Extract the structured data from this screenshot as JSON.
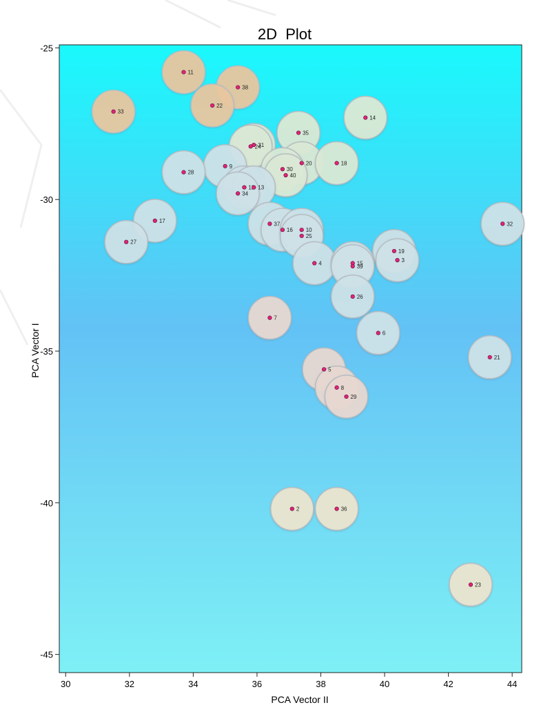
{
  "chart_data": {
    "type": "scatter",
    "title": "2D  Plot",
    "xlabel": "PCA Vector II",
    "ylabel": "PCA Vector I",
    "xlim": [
      29.8,
      44.3
    ],
    "ylim": [
      -45.6,
      -24.9
    ],
    "x_ticks": [
      30,
      32,
      34,
      36,
      38,
      40,
      42,
      44
    ],
    "y_ticks": [
      -25,
      -30,
      -35,
      -40,
      -45
    ],
    "grid": false,
    "legend": "none",
    "points": [
      {
        "label": "11",
        "x": 33.7,
        "y": -25.8,
        "color": "#e9c7a0"
      },
      {
        "label": "38",
        "x": 35.4,
        "y": -26.3,
        "color": "#e9c7a0"
      },
      {
        "label": "22",
        "x": 34.6,
        "y": -26.9,
        "color": "#e9c7a0"
      },
      {
        "label": "33",
        "x": 31.5,
        "y": -27.1,
        "color": "#e9c7a0"
      },
      {
        "label": "14",
        "x": 39.4,
        "y": -27.3,
        "color": "#dcebd6"
      },
      {
        "label": "35",
        "x": 37.3,
        "y": -27.8,
        "color": "#dcebd6"
      },
      {
        "label": "31",
        "x": 35.9,
        "y": -28.2,
        "color": "#dcebd6"
      },
      {
        "label": "24",
        "x": 35.8,
        "y": -28.25,
        "color": "#dcebd6"
      },
      {
        "label": "20",
        "x": 37.4,
        "y": -28.8,
        "color": "#dcebd6"
      },
      {
        "label": "18",
        "x": 38.5,
        "y": -28.8,
        "color": "#dcebd6"
      },
      {
        "label": "9",
        "x": 35.0,
        "y": -28.9,
        "color": "#cfe3ea"
      },
      {
        "label": "30",
        "x": 36.8,
        "y": -29.0,
        "color": "#dcebd6"
      },
      {
        "label": "40",
        "x": 36.9,
        "y": -29.2,
        "color": "#dcebd6"
      },
      {
        "label": "28",
        "x": 33.7,
        "y": -29.1,
        "color": "#cfe3ea"
      },
      {
        "label": "12",
        "x": 35.6,
        "y": -29.6,
        "color": "#cfe3ea"
      },
      {
        "label": "13",
        "x": 35.9,
        "y": -29.6,
        "color": "#cfe3ea"
      },
      {
        "label": "34",
        "x": 35.4,
        "y": -29.8,
        "color": "#cfe3ea"
      },
      {
        "label": "17",
        "x": 32.8,
        "y": -30.7,
        "color": "#cfe3ea"
      },
      {
        "label": "37",
        "x": 36.4,
        "y": -30.8,
        "color": "#cfe3ea"
      },
      {
        "label": "32",
        "x": 43.7,
        "y": -30.8,
        "color": "#cfe3ea"
      },
      {
        "label": "16",
        "x": 36.8,
        "y": -31.0,
        "color": "#cfe3ea"
      },
      {
        "label": "10",
        "x": 37.4,
        "y": -31.0,
        "color": "#cfe3ea"
      },
      {
        "label": "25",
        "x": 37.4,
        "y": -31.2,
        "color": "#cfe3ea"
      },
      {
        "label": "27",
        "x": 31.9,
        "y": -31.4,
        "color": "#cfe3ea"
      },
      {
        "label": "19",
        "x": 40.3,
        "y": -31.7,
        "color": "#cfe3ea"
      },
      {
        "label": "3",
        "x": 40.4,
        "y": -32.0,
        "color": "#cfe3ea"
      },
      {
        "label": "4",
        "x": 37.8,
        "y": -32.1,
        "color": "#cfe3ea"
      },
      {
        "label": "15",
        "x": 39.0,
        "y": -32.1,
        "color": "#cfe3ea"
      },
      {
        "label": "39",
        "x": 39.0,
        "y": -32.2,
        "color": "#cfe3ea"
      },
      {
        "label": "26",
        "x": 39.0,
        "y": -33.2,
        "color": "#cfe3ea"
      },
      {
        "label": "7",
        "x": 36.4,
        "y": -33.9,
        "color": "#ead9d2"
      },
      {
        "label": "6",
        "x": 39.8,
        "y": -34.4,
        "color": "#cfe3ea"
      },
      {
        "label": "21",
        "x": 43.3,
        "y": -35.2,
        "color": "#cfe3ea"
      },
      {
        "label": "5",
        "x": 38.1,
        "y": -35.6,
        "color": "#ead9d2"
      },
      {
        "label": "8",
        "x": 38.5,
        "y": -36.2,
        "color": "#ead9d2"
      },
      {
        "label": "29",
        "x": 38.8,
        "y": -36.5,
        "color": "#ead9d2"
      },
      {
        "label": "2",
        "x": 37.1,
        "y": -40.2,
        "color": "#ede6d0"
      },
      {
        "label": "36",
        "x": 38.5,
        "y": -40.2,
        "color": "#ede6d0"
      },
      {
        "label": "23",
        "x": 42.7,
        "y": -42.7,
        "color": "#ede6d0"
      }
    ],
    "colors": {
      "background_top": "#19f9fc",
      "background_mid": "#63c2f5",
      "background_bottom": "#7ef0f5",
      "point_fill": "#e0237a",
      "halo_stroke": "#b7bdc2"
    }
  }
}
